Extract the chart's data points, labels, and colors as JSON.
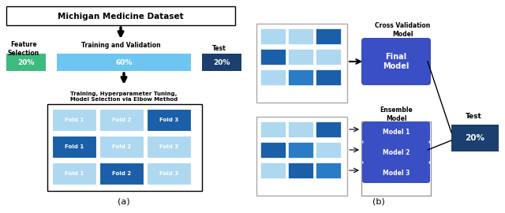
{
  "title_text": "Michigan Medicine Dataset",
  "feature_label": "Feature\nSelection",
  "feature_pct": "20%",
  "feature_color": "#3dba7e",
  "train_label": "Training and Validation",
  "train_pct": "60%",
  "train_color": "#6ec6f0",
  "test_label_a": "Test",
  "test_pct_a": "20%",
  "test_color": "#1b3f6e",
  "fold_label_bottom": "Training, Hyperparameter Tuning,\nModel Selection via Elbow Method",
  "fold_light": "#add8f0",
  "fold_dark": "#1a5fa8",
  "fold_medium": "#2a7cc7",
  "subplot_a_label": "(a)",
  "subplot_b_label": "(b)",
  "cv_label": "Cross Validation\nModel",
  "final_model_label": "Final\nModel",
  "ensemble_label": "Ensemble\nModel",
  "model_labels": [
    "Model 1",
    "Model 2",
    "Model 3"
  ],
  "test_label_b": "Test",
  "test_pct_b": "20%",
  "model_box_color": "#3a4fc4",
  "final_box_color": "#3a4fc4",
  "bg_color": "#ffffff"
}
